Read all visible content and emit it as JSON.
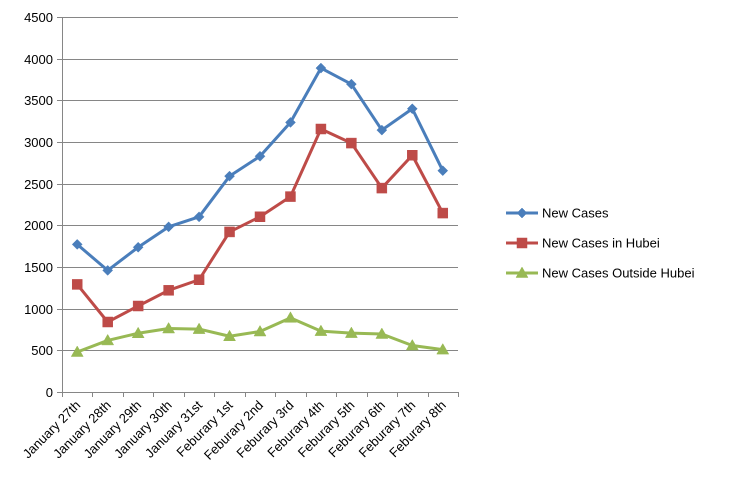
{
  "chart_data": {
    "type": "line",
    "title": "",
    "xlabel": "",
    "ylabel": "",
    "categories": [
      "January 27th",
      "January 28th",
      "January 29th",
      "January 30th",
      "January 31st",
      "Feburary 1st",
      "Feburary 2nd",
      "Feburary 3rd",
      "Feburary 4th",
      "Feburary 5th",
      "Feburary 6th",
      "Feburary 7th",
      "Feburary 8th"
    ],
    "ylim": [
      0,
      4500
    ],
    "yticks": [
      0,
      500,
      1000,
      1500,
      2000,
      2500,
      3000,
      3500,
      4000,
      4500
    ],
    "grid": "horizontal",
    "legend_position": "right",
    "series": [
      {
        "name": "New Cases",
        "marker": "diamond",
        "color": "#4a7ebb",
        "values": [
          1771,
          1459,
          1737,
          1982,
          2102,
          2590,
          2829,
          3235,
          3887,
          3694,
          3143,
          3399,
          2656
        ]
      },
      {
        "name": "New Cases in Hubei",
        "marker": "square",
        "color": "#be4b48",
        "values": [
          1291,
          840,
          1032,
          1220,
          1347,
          1921,
          2103,
          2345,
          3156,
          2987,
          2447,
          2841,
          2147
        ]
      },
      {
        "name": "New Cases Outside Hubei",
        "marker": "triangle",
        "color": "#98b954",
        "values": [
          480,
          619,
          705,
          762,
          755,
          669,
          726,
          890,
          731,
          707,
          696,
          558,
          509
        ]
      }
    ]
  }
}
